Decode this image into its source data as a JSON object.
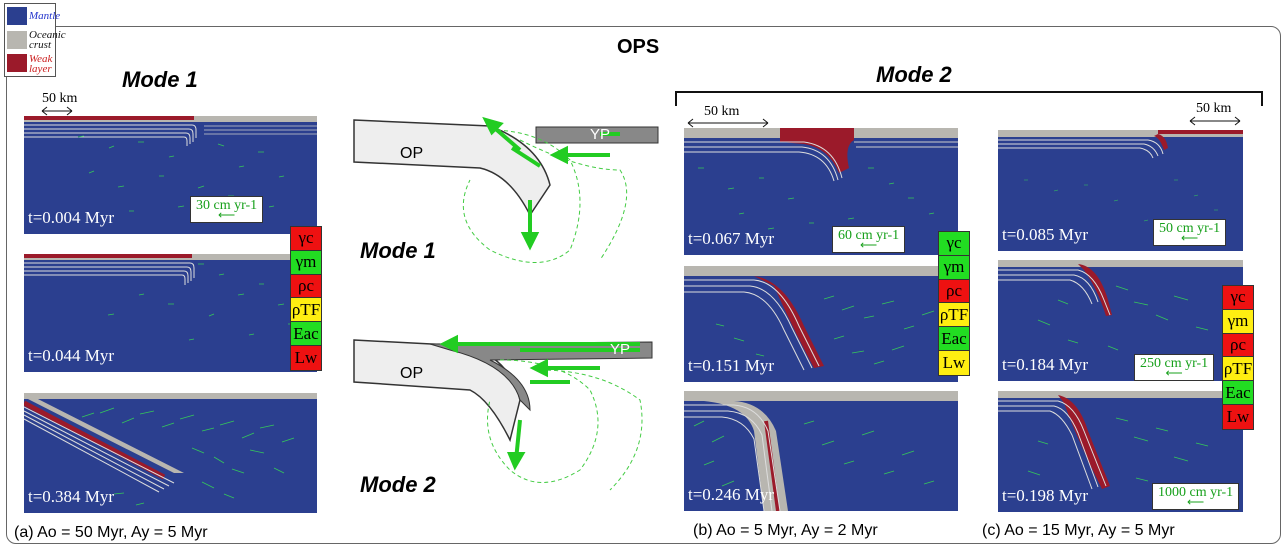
{
  "legend": [
    {
      "label": "Mantle",
      "color": "#2b3f8f",
      "text_color": "#2233cc"
    },
    {
      "label": "Oceanic crust",
      "color": "#b8b6b0",
      "text_color": "#111111"
    },
    {
      "label": "Weak layer",
      "color": "#9b1a2a",
      "text_color": "#cc2222"
    }
  ],
  "title": "OPS",
  "mode1_title": "Mode 1",
  "mode2_title": "Mode 2",
  "center_mode1": "Mode 1",
  "center_mode2": "Mode 2",
  "plate_op": "OP",
  "plate_yp": "YP",
  "scale_50km": "50 km",
  "panel_a": {
    "times": [
      "t=0.004 Myr",
      "t=0.044 Myr",
      "t=0.384 Myr"
    ],
    "velocity_scale": "30 cm yr-1",
    "caption": "(a)  Ao = 50 Myr,    Ay = 5 Myr"
  },
  "panel_b": {
    "times": [
      "t=0.067 Myr",
      "t=0.151 Myr",
      "t=0.246 Myr"
    ],
    "velocity_scale": "60 cm yr-1",
    "caption": "(b)  Ao = 5 Myr,     Ay = 2 Myr"
  },
  "panel_c": {
    "times": [
      "t=0.085 Myr",
      "t=0.184 Myr",
      "t=0.198 Myr"
    ],
    "velocity_scales": [
      "50 cm yr-1",
      "250 cm yr-1",
      "1000 cm yr-1"
    ],
    "caption": "(c) Ao = 15 Myr,     Ay = 5 Myr"
  },
  "params_a": [
    {
      "label": "γc",
      "color": "#ee1111"
    },
    {
      "label": "γm",
      "color": "#22dd22"
    },
    {
      "label": "ρc",
      "color": "#ee1111"
    },
    {
      "label": "ρTF",
      "color": "#ffee11"
    },
    {
      "label": "Eac",
      "color": "#22dd22"
    },
    {
      "label": "Lw",
      "color": "#ee1111"
    }
  ],
  "params_b": [
    {
      "label": "γc",
      "color": "#22dd22"
    },
    {
      "label": "γm",
      "color": "#22dd22"
    },
    {
      "label": "ρc",
      "color": "#ee1111"
    },
    {
      "label": "ρTF",
      "color": "#ffee11"
    },
    {
      "label": "Eac",
      "color": "#22dd22"
    },
    {
      "label": "Lw",
      "color": "#ffee11"
    }
  ],
  "params_c": [
    {
      "label": "γc",
      "color": "#ee1111"
    },
    {
      "label": "γm",
      "color": "#ffee11"
    },
    {
      "label": "ρc",
      "color": "#ee1111"
    },
    {
      "label": "ρTF",
      "color": "#ffee11"
    },
    {
      "label": "Eac",
      "color": "#22dd22"
    },
    {
      "label": "Lw",
      "color": "#ee1111"
    }
  ]
}
